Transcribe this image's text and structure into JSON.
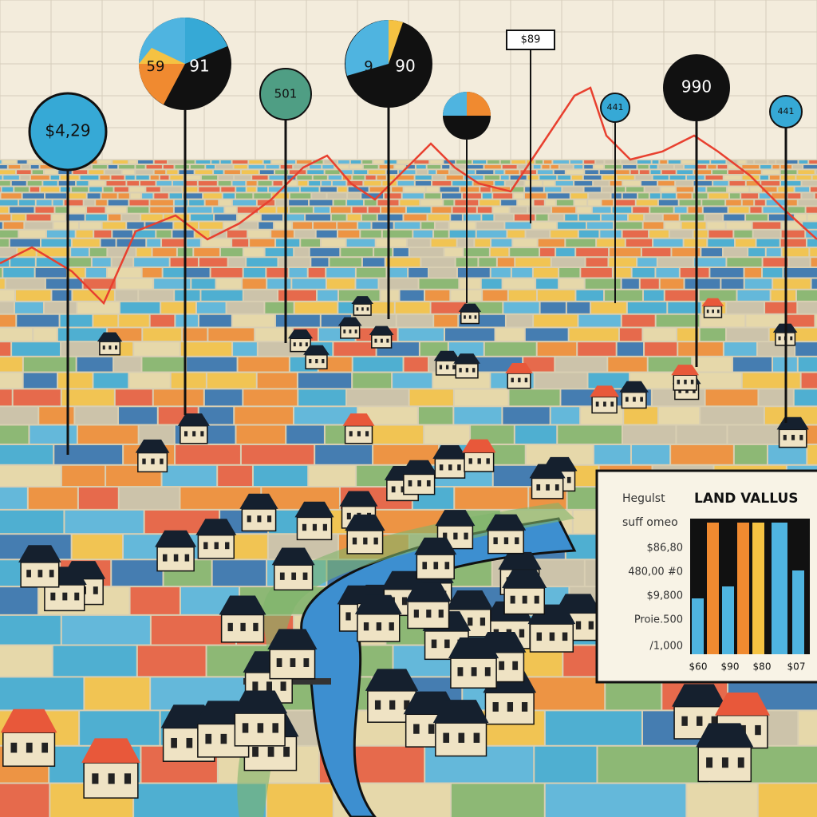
{
  "pins": [
    {
      "label": "$4,29"
    },
    {
      "label": "501"
    },
    {
      "label": "441"
    },
    {
      "label": "990"
    },
    {
      "label": "441"
    },
    {
      "label": "$89"
    }
  ],
  "pies": [
    {
      "labels": [
        "59",
        "91"
      ]
    },
    {
      "labels": [
        "9",
        "90"
      ]
    }
  ],
  "inset": {
    "title_prefix": "Hegulst",
    "title": "LAND VALLUS",
    "subtitle": "suff omeo",
    "values": [
      "$86,80",
      "480,00 #0",
      "$9,800",
      "Proie.500",
      "/1,000"
    ],
    "x_labels": [
      "$60",
      "$90",
      "$80",
      "$07"
    ]
  }
}
